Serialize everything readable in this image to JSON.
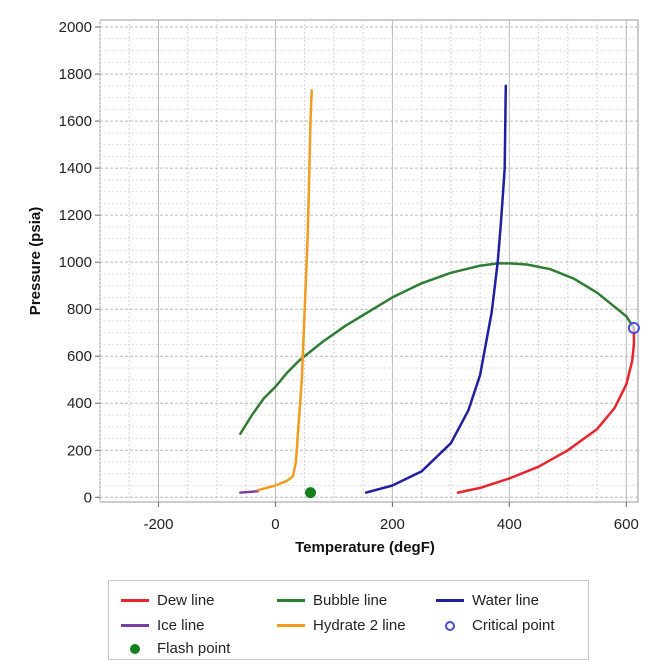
{
  "chart_data": {
    "type": "line",
    "title": "",
    "xlabel": "Temperature (degF)",
    "ylabel": "Pressure (psia)",
    "xlim": [
      -300,
      620
    ],
    "ylim": [
      -20,
      2030
    ],
    "xticks": [
      -200,
      0,
      200,
      400,
      600
    ],
    "yticks": [
      0,
      200,
      400,
      600,
      800,
      1000,
      1200,
      1400,
      1600,
      1800,
      2000
    ],
    "x_tick_labels": [
      "-200",
      "0",
      "200",
      "400",
      "600"
    ],
    "y_tick_labels": [
      "0",
      "200",
      "400",
      "600",
      "800",
      "1000",
      "1200",
      "1400",
      "1600",
      "1800",
      "2000"
    ],
    "grid": true,
    "legend_position": "bottom",
    "series": [
      {
        "name": "Dew line",
        "color": "#e8252d",
        "kind": "line",
        "x": [
          312,
          350,
          400,
          450,
          500,
          550,
          580,
          600,
          610,
          613,
          613
        ],
        "y": [
          20,
          40,
          80,
          130,
          200,
          290,
          380,
          480,
          580,
          650,
          720
        ]
      },
      {
        "name": "Bubble line",
        "color": "#2e7d32",
        "kind": "line",
        "x": [
          -60,
          -40,
          -20,
          0,
          20,
          40,
          80,
          120,
          160,
          200,
          250,
          300,
          350,
          380,
          400,
          430,
          470,
          510,
          550,
          580,
          600,
          613
        ],
        "y": [
          270,
          350,
          420,
          470,
          530,
          580,
          660,
          730,
          790,
          850,
          910,
          955,
          985,
          995,
          995,
          990,
          970,
          930,
          870,
          810,
          770,
          720
        ]
      },
      {
        "name": "Water line",
        "color": "#1f1fa0",
        "kind": "line",
        "x": [
          155,
          200,
          250,
          300,
          330,
          350,
          370,
          380,
          385,
          388,
          392,
          393,
          394
        ],
        "y": [
          20,
          50,
          110,
          230,
          370,
          520,
          790,
          1000,
          1150,
          1250,
          1400,
          1600,
          1750
        ]
      },
      {
        "name": "Ice line",
        "color": "#7a3fa6",
        "kind": "line",
        "x": [
          -60,
          -50,
          -40,
          -30
        ],
        "y": [
          20,
          22,
          24,
          26
        ]
      },
      {
        "name": "Hydrate 2 line",
        "color": "#f39b1e",
        "kind": "line",
        "x": [
          -30,
          0,
          20,
          30,
          35,
          45,
          50,
          55,
          58,
          60,
          62
        ],
        "y": [
          30,
          50,
          70,
          90,
          150,
          500,
          800,
          1100,
          1400,
          1600,
          1730
        ]
      },
      {
        "name": "Critical point",
        "color": "#4a4ad6",
        "kind": "point-hollow",
        "x": [
          613
        ],
        "y": [
          720
        ]
      },
      {
        "name": "Flash point",
        "color": "#12801f",
        "kind": "point-filled",
        "x": [
          60
        ],
        "y": [
          20
        ]
      }
    ]
  },
  "legend": {
    "items": [
      {
        "label": "Dew line",
        "color": "#e8252d",
        "kind": "line"
      },
      {
        "label": "Bubble line",
        "color": "#2e7d32",
        "kind": "line"
      },
      {
        "label": "Water line",
        "color": "#1f1fa0",
        "kind": "line"
      },
      {
        "label": "Ice line",
        "color": "#7a3fa6",
        "kind": "line"
      },
      {
        "label": "Hydrate 2 line",
        "color": "#f39b1e",
        "kind": "line"
      },
      {
        "label": "Critical point",
        "color": "#4a4ad6",
        "kind": "point-hollow"
      },
      {
        "label": "Flash point",
        "color": "#12801f",
        "kind": "point-filled"
      }
    ]
  }
}
